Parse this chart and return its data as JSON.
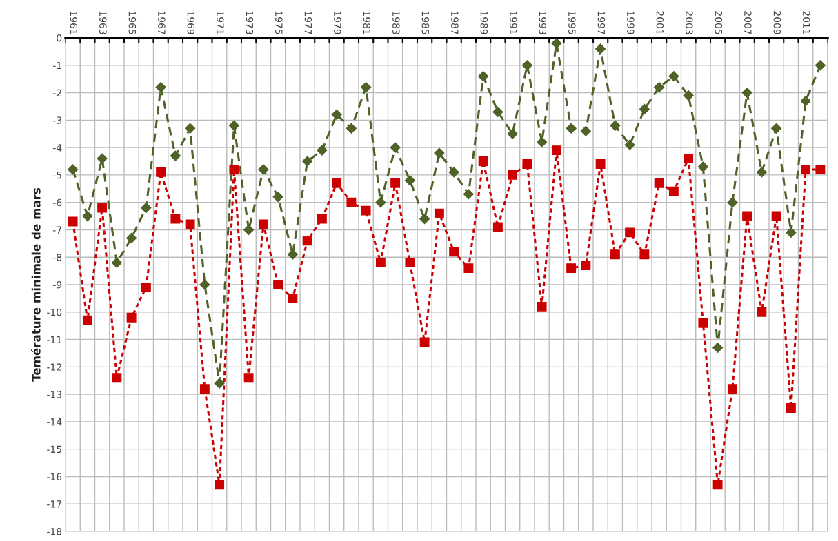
{
  "chart_data": {
    "type": "line",
    "ylabel": "Temérature minimale de mars",
    "categories": [
      "1961",
      null,
      "1963",
      null,
      "1965",
      null,
      "1967",
      null,
      "1969",
      null,
      "1971",
      null,
      "1973",
      null,
      "1975",
      null,
      "1977",
      null,
      "1979",
      null,
      "1981",
      null,
      "1983",
      null,
      "1985",
      null,
      "1987",
      null,
      "1989",
      null,
      "1991",
      null,
      "1993",
      null,
      "1995",
      null,
      "1997",
      null,
      "1999",
      null,
      "2001",
      null,
      "2003",
      null,
      "2005",
      null,
      "2007",
      null,
      "2009",
      null,
      "2011",
      null
    ],
    "series": [
      {
        "color": "#4f6228",
        "marker": "diamond",
        "line_style": "dashed",
        "values": [
          -4.8,
          -6.5,
          -4.4,
          -8.2,
          -7.3,
          -6.2,
          -1.8,
          -4.3,
          -3.3,
          -9.0,
          -12.6,
          -3.2,
          -7.0,
          -4.8,
          -5.8,
          -7.9,
          -4.5,
          -4.1,
          -2.8,
          -3.3,
          -1.8,
          -6.0,
          -4.0,
          -5.2,
          -6.6,
          -4.2,
          -4.9,
          -5.7,
          -1.4,
          -2.7,
          -3.5,
          -1.0,
          -3.8,
          -0.2,
          -3.3,
          -3.4,
          -0.4,
          -3.2,
          -3.9,
          -2.6,
          -1.8,
          -1.4,
          -2.1,
          -4.7,
          -11.3,
          -6.0,
          -2.0,
          -4.9,
          -3.3,
          -7.1,
          -2.3,
          -1.0
        ]
      },
      {
        "color": "#cc0000",
        "marker": "square",
        "line_style": "dotted",
        "values": [
          -6.7,
          -10.3,
          -6.2,
          -12.4,
          -10.2,
          -9.1,
          -4.9,
          -6.6,
          -6.8,
          -12.8,
          -16.3,
          -4.8,
          -12.4,
          -6.8,
          -9.0,
          -9.5,
          -7.4,
          -6.6,
          -5.3,
          -6.0,
          -6.3,
          -8.2,
          -5.3,
          -8.2,
          -11.1,
          -6.4,
          -7.8,
          -8.4,
          -4.5,
          -6.9,
          -5.0,
          -4.6,
          -9.8,
          -4.1,
          -8.4,
          -8.3,
          -4.6,
          -7.9,
          -7.1,
          -7.9,
          -5.3,
          -5.6,
          -4.4,
          -10.4,
          -16.3,
          -12.8,
          -6.5,
          -10.0,
          -6.5,
          -13.5,
          -4.8,
          -4.8
        ]
      }
    ],
    "ylim": [
      -18,
      0
    ],
    "yticks": [
      -18,
      -17,
      -16,
      -15,
      -14,
      -13,
      -12,
      -11,
      -10,
      -9,
      -8,
      -7,
      -6,
      -5,
      -4,
      -3,
      -2,
      -1,
      0
    ],
    "grid": true,
    "legend": false
  }
}
